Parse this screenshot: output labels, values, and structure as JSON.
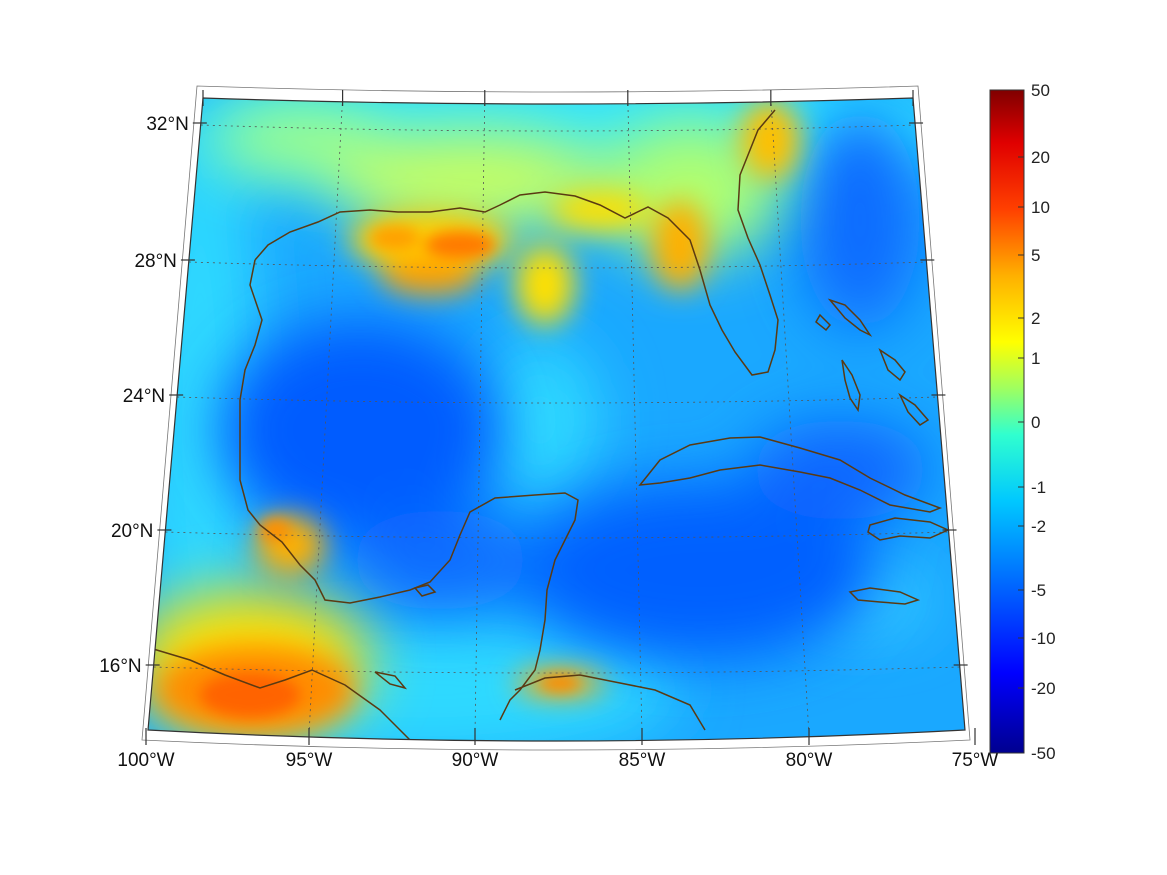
{
  "map": {
    "projection": "conic",
    "lon_range": [
      -100,
      -75
    ],
    "lat_range": [
      14,
      33
    ],
    "field_palette": "jet",
    "coastline_color": "#5a3a12",
    "lat_ticks": [
      {
        "value": 32,
        "label": "32°N"
      },
      {
        "value": 28,
        "label": "28°N"
      },
      {
        "value": 24,
        "label": "24°N"
      },
      {
        "value": 20,
        "label": "20°N"
      },
      {
        "value": 16,
        "label": "16°N"
      }
    ],
    "lon_ticks": [
      {
        "value": -100,
        "label": "100°W"
      },
      {
        "value": -95,
        "label": "95°W"
      },
      {
        "value": -90,
        "label": "90°W"
      },
      {
        "value": -85,
        "label": "85°W"
      },
      {
        "value": -80,
        "label": "80°W"
      },
      {
        "value": -75,
        "label": "75°W"
      }
    ]
  },
  "colorbar": {
    "scale": "symmetric-log",
    "palette": "jet",
    "ticks": [
      "50",
      "20",
      "10",
      "5",
      "2",
      "1",
      "0",
      "-1",
      "-2",
      "-5",
      "-10",
      "-20",
      "-50"
    ]
  }
}
